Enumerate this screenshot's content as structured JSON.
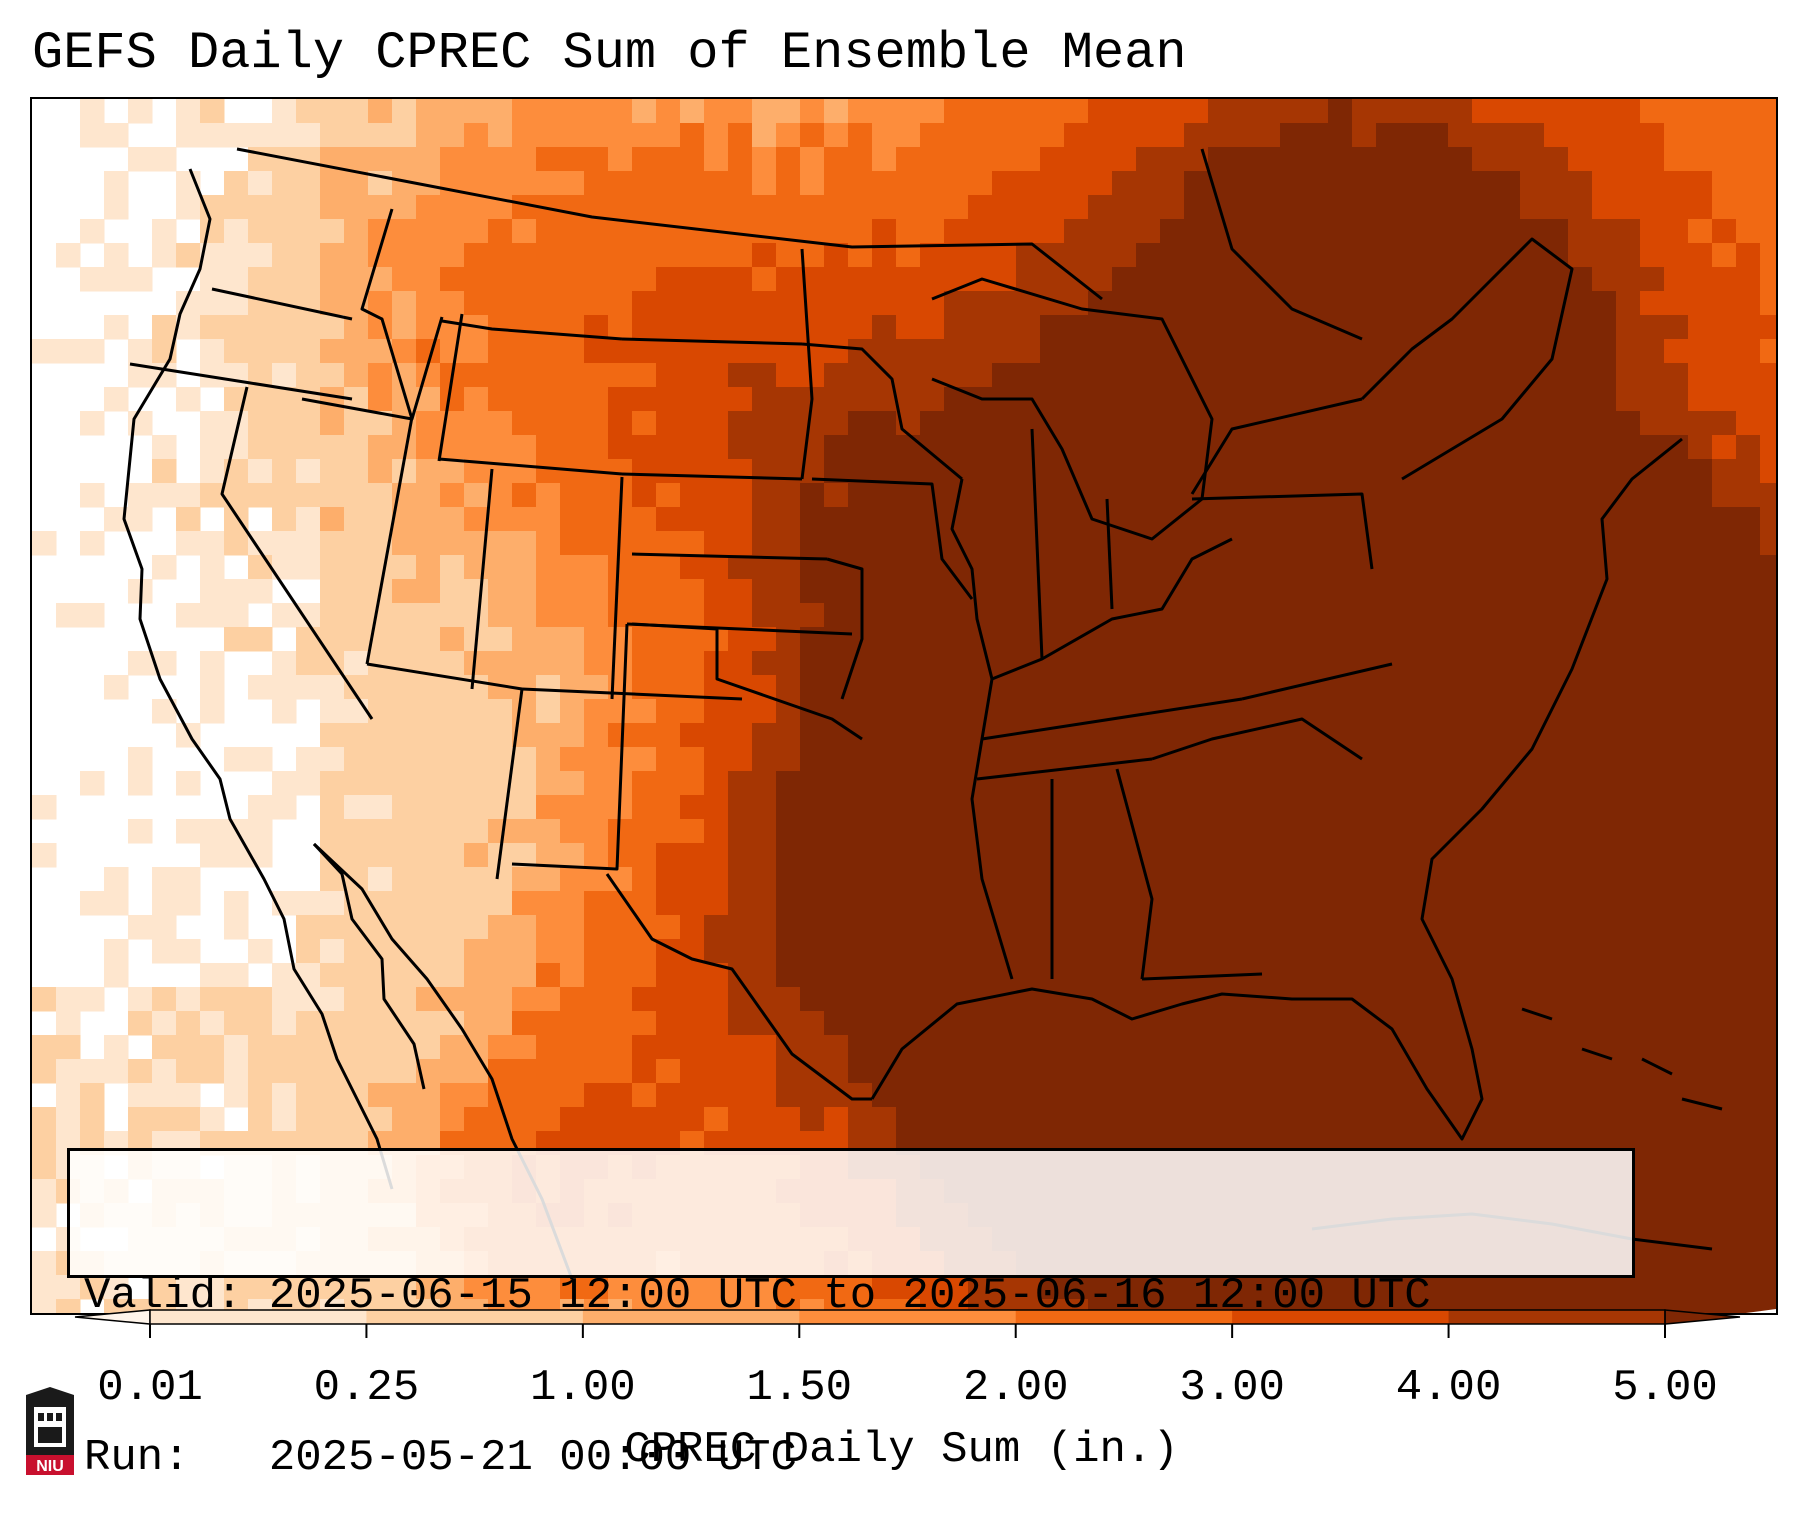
{
  "title": "GEFS Daily CPREC Sum of Ensemble Mean",
  "valid_box": {
    "valid_label": "Valid:",
    "valid_value": "2025-06-15 12:00 UTC to 2025-06-16 12:00 UTC",
    "run_label": "Run:",
    "run_value": "2025-05-21 00:00 UTC"
  },
  "colorbar": {
    "label": "CPREC Daily Sum (in.)",
    "ticks": [
      "0.01",
      "0.25",
      "1.00",
      "1.50",
      "2.00",
      "3.00",
      "4.00",
      "5.00"
    ],
    "colors": [
      "#fff5eb",
      "#fee6ce",
      "#fdd0a2",
      "#fdae6b",
      "#fd8d3c",
      "#f16913",
      "#d94801",
      "#a63603",
      "#7f2704"
    ],
    "extend": "both"
  },
  "logo": {
    "text": "NIU",
    "color": "#c8102e"
  },
  "map": {
    "region": "Contiguous United States",
    "variable": "CPREC daily sum",
    "colors": {
      "land_border": "#000000",
      "ocean_blank": "#ffffff"
    }
  }
}
